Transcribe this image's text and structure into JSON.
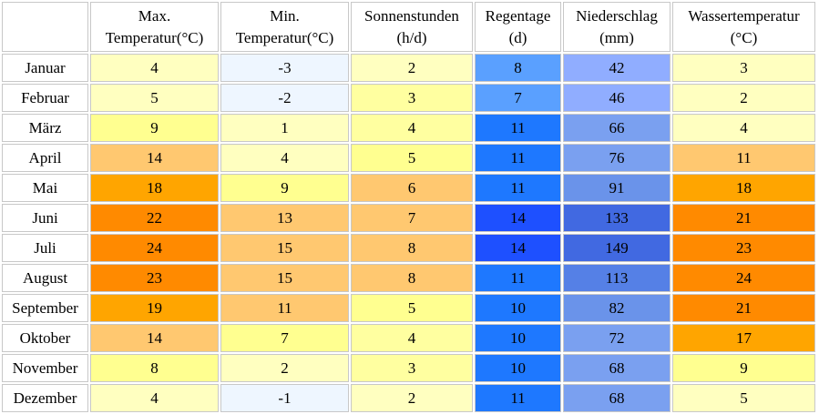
{
  "headers": [
    {
      "line1": "Max.",
      "line2": "Temperatur(°C)"
    },
    {
      "line1": "Min.",
      "line2": "Temperatur(°C)"
    },
    {
      "line1": "Sonnenstunden",
      "line2": "(h/d)"
    },
    {
      "line1": "Regentage",
      "line2": "(d)"
    },
    {
      "line1": "Niederschlag",
      "line2": "(mm)"
    },
    {
      "line1": "Wassertemperatur",
      "line2": "(°C)"
    }
  ],
  "rows": [
    {
      "month": "Januar",
      "values": [
        "4",
        "-3",
        "2",
        "8",
        "42",
        "3"
      ],
      "colors": [
        "#ffffc0",
        "#eef6ff",
        "#ffffc0",
        "#5aa0ff",
        "#90adff",
        "#ffffc0"
      ]
    },
    {
      "month": "Februar",
      "values": [
        "5",
        "-2",
        "3",
        "7",
        "46",
        "2"
      ],
      "colors": [
        "#ffffc0",
        "#eef6ff",
        "#ffffa0",
        "#5aa0ff",
        "#90adff",
        "#ffffc0"
      ]
    },
    {
      "month": "März",
      "values": [
        "9",
        "1",
        "4",
        "11",
        "66",
        "4"
      ],
      "colors": [
        "#ffff90",
        "#ffffc0",
        "#ffffa0",
        "#1e78ff",
        "#7aa0f0",
        "#ffffc0"
      ]
    },
    {
      "month": "April",
      "values": [
        "14",
        "4",
        "5",
        "11",
        "76",
        "11"
      ],
      "colors": [
        "#ffc870",
        "#ffffc0",
        "#ffff90",
        "#1e78ff",
        "#7aa0f0",
        "#ffc870"
      ]
    },
    {
      "month": "Mai",
      "values": [
        "18",
        "9",
        "6",
        "11",
        "91",
        "18"
      ],
      "colors": [
        "#ffa500",
        "#ffff90",
        "#ffc870",
        "#1e78ff",
        "#6a93ea",
        "#ffa500"
      ]
    },
    {
      "month": "Juni",
      "values": [
        "22",
        "13",
        "7",
        "14",
        "133",
        "21"
      ],
      "colors": [
        "#ff8a00",
        "#ffc870",
        "#ffc870",
        "#1e50ff",
        "#4169e1",
        "#ff8a00"
      ]
    },
    {
      "month": "Juli",
      "values": [
        "24",
        "15",
        "8",
        "14",
        "149",
        "23"
      ],
      "colors": [
        "#ff8a00",
        "#ffc870",
        "#ffc870",
        "#1e50ff",
        "#4169e1",
        "#ff8a00"
      ]
    },
    {
      "month": "August",
      "values": [
        "23",
        "15",
        "8",
        "11",
        "113",
        "24"
      ],
      "colors": [
        "#ff8a00",
        "#ffc870",
        "#ffc870",
        "#1e78ff",
        "#5580e6",
        "#ff8a00"
      ]
    },
    {
      "month": "September",
      "values": [
        "19",
        "11",
        "5",
        "10",
        "82",
        "21"
      ],
      "colors": [
        "#ffa500",
        "#ffc870",
        "#ffff90",
        "#1e78ff",
        "#6a93ea",
        "#ff8a00"
      ]
    },
    {
      "month": "Oktober",
      "values": [
        "14",
        "7",
        "4",
        "10",
        "72",
        "17"
      ],
      "colors": [
        "#ffc870",
        "#ffff90",
        "#ffffa0",
        "#1e78ff",
        "#7aa0f0",
        "#ffa500"
      ]
    },
    {
      "month": "November",
      "values": [
        "8",
        "2",
        "3",
        "10",
        "68",
        "9"
      ],
      "colors": [
        "#ffff90",
        "#ffffc0",
        "#ffffa0",
        "#1e78ff",
        "#7aa0f0",
        "#ffff90"
      ]
    },
    {
      "month": "Dezember",
      "values": [
        "4",
        "-1",
        "2",
        "11",
        "68",
        "5"
      ],
      "colors": [
        "#ffffc0",
        "#eef6ff",
        "#ffffc0",
        "#1e78ff",
        "#7aa0f0",
        "#ffffc0"
      ]
    }
  ]
}
